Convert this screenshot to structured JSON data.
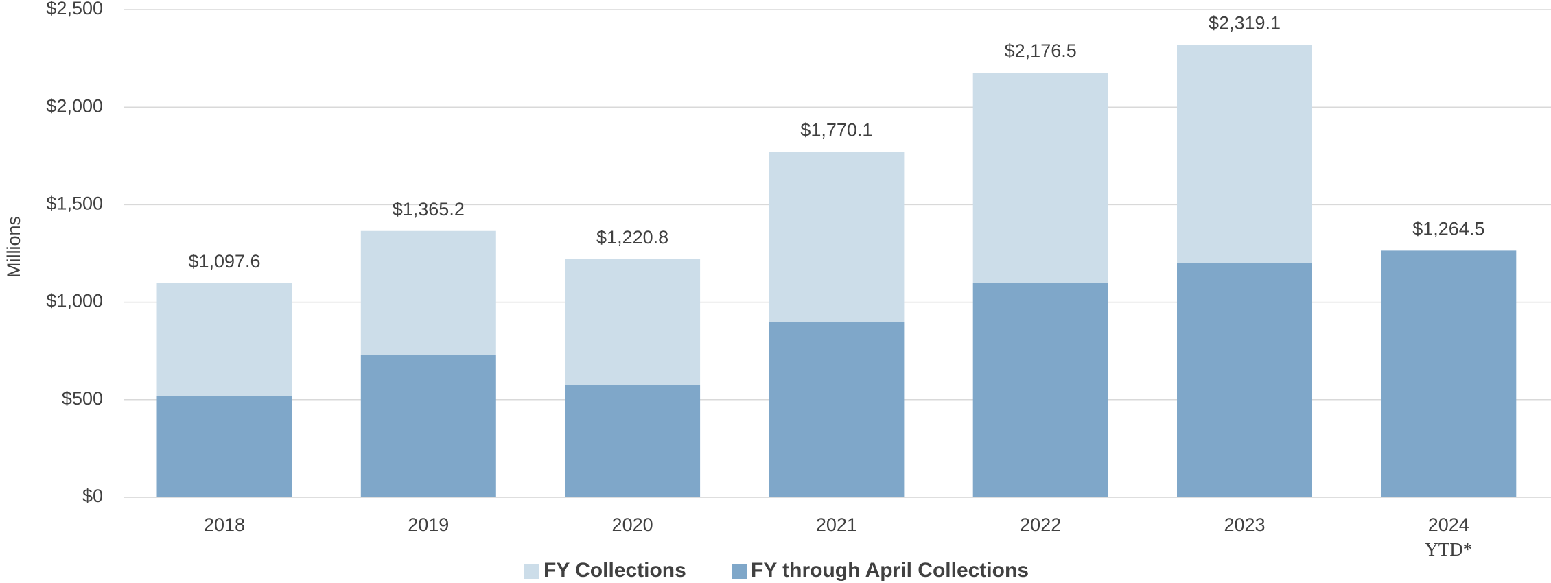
{
  "chart_data": {
    "type": "stacked_bar",
    "ylabel": "Millions",
    "categories": [
      "2018",
      "2019",
      "2020",
      "2021",
      "2022",
      "2023",
      "2024\nYTD*"
    ],
    "series": [
      {
        "name": "FY through April Collections",
        "color": "#7fa7c9",
        "values": [
          520,
          730,
          575,
          900,
          1100,
          1200,
          1264.5
        ]
      },
      {
        "name": "FY Collections",
        "color": "#ccdde9",
        "values": [
          577.6,
          635.2,
          645.8,
          870.1,
          1076.5,
          1119.1,
          null
        ]
      }
    ],
    "totals": [
      1097.6,
      1365.2,
      1220.8,
      1770.1,
      2176.5,
      2319.1,
      1264.5
    ],
    "total_labels": [
      "$1,097.6",
      "$1,365.2",
      "$1,220.8",
      "$1,770.1",
      "$2,176.5",
      "$2,319.1",
      "$1,264.5"
    ],
    "ylim": [
      0,
      2500
    ],
    "yticks": [
      {
        "value": 0,
        "label": "$0"
      },
      {
        "value": 500,
        "label": "$500"
      },
      {
        "value": 1000,
        "label": "$1,000"
      },
      {
        "value": 1500,
        "label": "$1,500"
      },
      {
        "value": 2000,
        "label": "$2,000"
      },
      {
        "value": 2500,
        "label": "$2,500"
      }
    ],
    "grid": true
  }
}
